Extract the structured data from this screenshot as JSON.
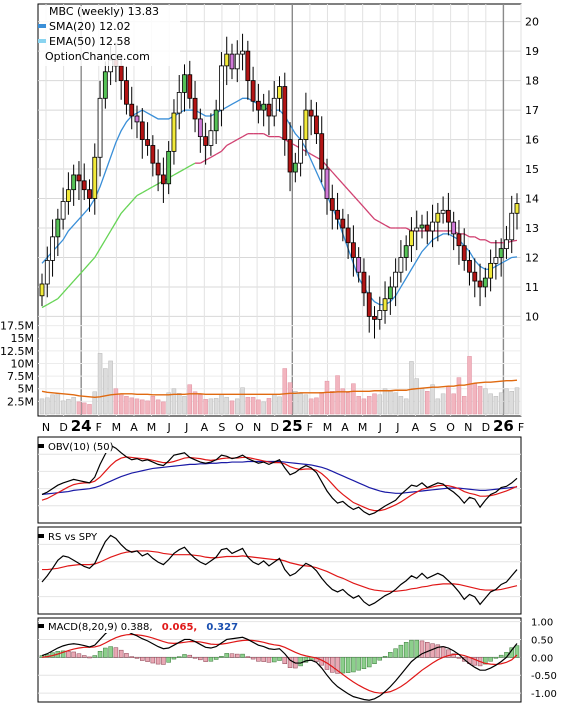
{
  "header": {
    "title": "MBC (weekly) 13.83",
    "sma_label": "SMA(20) 12.02",
    "ema_label": "EMA(50) 12.58",
    "watermark": "OptionChance.com"
  },
  "colors": {
    "sma": "#3a8fd8",
    "ema": "#8ad4f0",
    "up_body": "#f2ea3a",
    "up_body2": "#56c256",
    "down_body": "#b31515",
    "pink_body": "#d07ad8",
    "vol_up": "#dcdcdc",
    "vol_down": "#f2b5bf",
    "vol_ma": "#e06a10",
    "obv": "#000000",
    "obv_slow": "#1a1aa6",
    "signal": "#e01818",
    "macd_hist_up": "#8ccf8c",
    "macd_hist_down": "#e8a8b4",
    "macd_value2": "#e01818",
    "macd_value3": "#1a4fb0"
  },
  "chart_data": [
    {
      "type": "candlestick",
      "title": "MBC (weekly) 13.83",
      "series_names": [
        "SMA(20) 12.02",
        "EMA(50) 12.58"
      ],
      "ylim": [
        9.2,
        20.6
      ],
      "y_ticks": [
        "10",
        "11",
        "12",
        "13",
        "14",
        "15",
        "16",
        "17",
        "18",
        "19",
        "20"
      ],
      "x_ticks": [
        "N",
        "D",
        "24",
        "F",
        "M",
        "A",
        "M",
        "J",
        "J",
        "A",
        "S",
        "O",
        "N",
        "D",
        "25",
        "F",
        "M",
        "A",
        "M",
        "J",
        "J",
        "A",
        "S",
        "O",
        "N",
        "D",
        "26",
        "F"
      ],
      "grid": true,
      "close": [
        11.1,
        11.9,
        12.7,
        13.3,
        13.9,
        14.3,
        14.8,
        14.6,
        14.3,
        14.0,
        15.4,
        17.4,
        18.3,
        18.7,
        18.5,
        18.0,
        17.2,
        16.8,
        16.6,
        16.0,
        15.8,
        15.2,
        14.8,
        14.5,
        15.6,
        16.9,
        17.6,
        18.2,
        17.4,
        16.7,
        16.1,
        15.8,
        16.3,
        17.0,
        18.5,
        18.9,
        18.4,
        18.9,
        19.0,
        18.0,
        17.3,
        17.0,
        17.2,
        16.8,
        17.4,
        17.8,
        16.0,
        14.9,
        15.2,
        16.0,
        17.0,
        16.8,
        16.2,
        15.0,
        14.0,
        13.6,
        13.3,
        13.0,
        12.5,
        12.0,
        11.5,
        10.8,
        10.0,
        9.9,
        10.2,
        10.6,
        11.0,
        11.5,
        12.0,
        12.4,
        12.9,
        13.0,
        13.1,
        12.9,
        13.2,
        13.5,
        13.6,
        13.2,
        12.8,
        12.4,
        11.9,
        11.5,
        11.2,
        11.0,
        11.3,
        11.8,
        12.0,
        12.3,
        12.6,
        13.5,
        13.83
      ],
      "sma20": [
        11.8,
        12.0,
        12.2,
        12.4,
        12.6,
        12.9,
        13.1,
        13.3,
        13.5,
        13.7,
        14.0,
        14.4,
        14.9,
        15.4,
        15.9,
        16.3,
        16.6,
        16.8,
        16.9,
        17.0,
        16.9,
        16.8,
        16.7,
        16.7,
        16.7,
        16.8,
        16.9,
        17.0,
        17.0,
        17.0,
        16.9,
        16.8,
        16.8,
        16.9,
        17.0,
        17.1,
        17.2,
        17.3,
        17.4,
        17.4,
        17.3,
        17.2,
        17.1,
        17.0,
        17.0,
        17.0,
        16.8,
        16.5,
        16.2,
        16.0,
        15.7,
        15.3,
        14.9,
        14.5,
        14.1,
        13.7,
        13.3,
        12.8,
        12.3,
        11.8,
        11.3,
        11.0,
        10.7,
        10.5,
        10.4,
        10.4,
        10.5,
        10.7,
        11.0,
        11.3,
        11.6,
        11.9,
        12.2,
        12.4,
        12.6,
        12.7,
        12.8,
        12.8,
        12.7,
        12.6,
        12.4,
        12.2,
        11.9,
        11.7,
        11.6,
        11.6,
        11.7,
        11.8,
        11.9,
        12.0,
        12.02
      ],
      "ema50": [
        10.3,
        10.4,
        10.5,
        10.6,
        10.8,
        11.0,
        11.2,
        11.4,
        11.6,
        11.8,
        12.0,
        12.3,
        12.6,
        12.9,
        13.2,
        13.5,
        13.7,
        13.9,
        14.1,
        14.2,
        14.3,
        14.4,
        14.5,
        14.6,
        14.7,
        14.8,
        14.9,
        15.0,
        15.1,
        15.2,
        15.2,
        15.3,
        15.4,
        15.5,
        15.6,
        15.8,
        15.9,
        16.0,
        16.1,
        16.2,
        16.2,
        16.2,
        16.2,
        16.1,
        16.1,
        16.1,
        16.0,
        15.9,
        15.8,
        15.7,
        15.6,
        15.5,
        15.4,
        15.3,
        15.1,
        14.9,
        14.7,
        14.5,
        14.3,
        14.1,
        13.9,
        13.7,
        13.5,
        13.3,
        13.2,
        13.1,
        13.0,
        13.0,
        13.0,
        13.0,
        12.9,
        12.9,
        12.9,
        12.9,
        12.9,
        12.9,
        12.9,
        12.9,
        12.9,
        12.8,
        12.8,
        12.7,
        12.7,
        12.6,
        12.6,
        12.5,
        12.5,
        12.5,
        12.5,
        12.55,
        12.58
      ]
    },
    {
      "type": "bar",
      "name": "volume",
      "y_ticks": [
        "17.5M",
        "15M",
        "12.5M",
        "10M",
        "7.5M",
        "5M",
        "2.5M"
      ],
      "ylim": [
        0,
        19
      ],
      "values_m": [
        3.0,
        3.2,
        3.8,
        4.0,
        2.6,
        2.9,
        3.3,
        2.4,
        2.2,
        1.9,
        4.4,
        12.0,
        9.0,
        10.5,
        5.0,
        4.0,
        3.5,
        3.2,
        3.0,
        2.8,
        2.6,
        3.5,
        2.8,
        2.4,
        4.2,
        5.0,
        4.1,
        3.5,
        5.8,
        4.4,
        3.8,
        2.9,
        3.0,
        3.1,
        3.8,
        3.3,
        2.6,
        3.0,
        5.2,
        3.3,
        3.3,
        2.8,
        2.4,
        3.1,
        3.8,
        3.4,
        9.0,
        6.2,
        4.5,
        4.0,
        3.8,
        3.0,
        3.2,
        4.3,
        6.5,
        4.5,
        7.6,
        5.0,
        4.2,
        6.0,
        3.5,
        3.0,
        3.5,
        4.0,
        3.8,
        5.0,
        4.5,
        4.2,
        3.5,
        3.0,
        10.4,
        7.0,
        5.0,
        4.5,
        5.8,
        3.0,
        4.0,
        5.5,
        4.0,
        7.2,
        3.5,
        11.4,
        6.0,
        5.5,
        5.0,
        4.0,
        3.5,
        4.2,
        5.0,
        4.5,
        5.2
      ],
      "ma_m": [
        4.5,
        4.3,
        4.2,
        4.1,
        4.0,
        3.9,
        3.8,
        3.6,
        3.5,
        3.4,
        3.3,
        3.4,
        3.6,
        3.8,
        3.9,
        4.0,
        4.0,
        4.0,
        3.9,
        3.9,
        3.9,
        3.8,
        3.8,
        3.8,
        3.8,
        3.9,
        3.9,
        3.9,
        4.0,
        4.0,
        4.0,
        3.9,
        3.9,
        3.9,
        3.9,
        3.9,
        3.9,
        3.9,
        3.9,
        3.9,
        3.9,
        3.9,
        3.9,
        3.9,
        3.9,
        3.9,
        4.0,
        4.1,
        4.1,
        4.2,
        4.2,
        4.2,
        4.2,
        4.2,
        4.3,
        4.3,
        4.4,
        4.4,
        4.4,
        4.5,
        4.5,
        4.5,
        4.5,
        4.6,
        4.6,
        4.6,
        4.6,
        4.7,
        4.7,
        4.7,
        4.9,
        5.0,
        5.1,
        5.2,
        5.3,
        5.3,
        5.4,
        5.5,
        5.5,
        5.7,
        5.7,
        5.9,
        6.1,
        6.2,
        6.3,
        6.3,
        6.4,
        6.5,
        6.6,
        6.6,
        6.7
      ]
    },
    {
      "type": "line",
      "name": "OBV(10) (50)",
      "legend": "OBV(10) (50)",
      "obv": [
        0.1,
        0.14,
        0.2,
        0.26,
        0.3,
        0.33,
        0.36,
        0.34,
        0.32,
        0.3,
        0.4,
        0.62,
        0.8,
        0.95,
        0.9,
        0.82,
        0.75,
        0.7,
        0.72,
        0.68,
        0.7,
        0.66,
        0.62,
        0.6,
        0.68,
        0.78,
        0.8,
        0.82,
        0.74,
        0.7,
        0.66,
        0.64,
        0.66,
        0.7,
        0.78,
        0.76,
        0.72,
        0.74,
        0.78,
        0.72,
        0.68,
        0.64,
        0.66,
        0.62,
        0.66,
        0.7,
        0.56,
        0.44,
        0.48,
        0.55,
        0.6,
        0.56,
        0.48,
        0.32,
        0.16,
        0.04,
        -0.05,
        -0.02,
        -0.1,
        -0.16,
        -0.12,
        -0.2,
        -0.25,
        -0.22,
        -0.16,
        -0.1,
        -0.05,
        0.0,
        0.1,
        0.18,
        0.26,
        0.24,
        0.3,
        0.22,
        0.26,
        0.3,
        0.28,
        0.2,
        0.14,
        0.06,
        -0.05,
        0.05,
        0.02,
        -0.12,
        0.0,
        0.1,
        0.14,
        0.22,
        0.24,
        0.3,
        0.38
      ],
      "signal": [
        0.0,
        0.03,
        0.08,
        0.13,
        0.18,
        0.23,
        0.27,
        0.29,
        0.3,
        0.3,
        0.33,
        0.4,
        0.5,
        0.6,
        0.68,
        0.73,
        0.75,
        0.74,
        0.73,
        0.72,
        0.71,
        0.69,
        0.67,
        0.65,
        0.65,
        0.67,
        0.7,
        0.73,
        0.74,
        0.73,
        0.72,
        0.7,
        0.69,
        0.7,
        0.72,
        0.73,
        0.73,
        0.73,
        0.74,
        0.74,
        0.72,
        0.7,
        0.68,
        0.66,
        0.65,
        0.65,
        0.63,
        0.58,
        0.55,
        0.53,
        0.54,
        0.54,
        0.52,
        0.46,
        0.38,
        0.28,
        0.18,
        0.1,
        0.03,
        -0.04,
        -0.08,
        -0.12,
        -0.16,
        -0.18,
        -0.18,
        -0.16,
        -0.12,
        -0.08,
        -0.03,
        0.03,
        0.09,
        0.14,
        0.19,
        0.21,
        0.23,
        0.25,
        0.26,
        0.25,
        0.23,
        0.2,
        0.15,
        0.12,
        0.1,
        0.07,
        0.07,
        0.08,
        0.1,
        0.13,
        0.16,
        0.2,
        0.24
      ],
      "slow": [
        0.1,
        0.11,
        0.12,
        0.13,
        0.14,
        0.15,
        0.17,
        0.18,
        0.19,
        0.2,
        0.22,
        0.25,
        0.29,
        0.33,
        0.37,
        0.41,
        0.44,
        0.47,
        0.49,
        0.51,
        0.53,
        0.55,
        0.56,
        0.57,
        0.58,
        0.59,
        0.6,
        0.61,
        0.62,
        0.62,
        0.63,
        0.63,
        0.64,
        0.64,
        0.65,
        0.65,
        0.66,
        0.66,
        0.66,
        0.67,
        0.67,
        0.67,
        0.67,
        0.67,
        0.67,
        0.67,
        0.66,
        0.65,
        0.64,
        0.63,
        0.62,
        0.61,
        0.59,
        0.57,
        0.54,
        0.5,
        0.46,
        0.42,
        0.38,
        0.34,
        0.3,
        0.26,
        0.22,
        0.19,
        0.16,
        0.14,
        0.13,
        0.12,
        0.12,
        0.13,
        0.14,
        0.15,
        0.16,
        0.17,
        0.18,
        0.19,
        0.2,
        0.21,
        0.21,
        0.21,
        0.2,
        0.19,
        0.18,
        0.17,
        0.17,
        0.18,
        0.19,
        0.2,
        0.21,
        0.22,
        0.23
      ]
    },
    {
      "type": "line",
      "name": "RS vs SPY",
      "legend": "RS vs SPY",
      "rs": [
        0.2,
        0.3,
        0.42,
        0.55,
        0.62,
        0.6,
        0.55,
        0.5,
        0.45,
        0.42,
        0.5,
        0.68,
        0.85,
        0.95,
        0.9,
        0.8,
        0.72,
        0.68,
        0.7,
        0.62,
        0.66,
        0.58,
        0.52,
        0.48,
        0.56,
        0.66,
        0.72,
        0.76,
        0.66,
        0.58,
        0.52,
        0.48,
        0.54,
        0.6,
        0.72,
        0.74,
        0.66,
        0.7,
        0.74,
        0.6,
        0.52,
        0.48,
        0.54,
        0.46,
        0.52,
        0.58,
        0.4,
        0.3,
        0.34,
        0.42,
        0.5,
        0.46,
        0.38,
        0.26,
        0.16,
        0.08,
        0.04,
        0.08,
        0.0,
        -0.06,
        -0.02,
        -0.12,
        -0.18,
        -0.14,
        -0.08,
        -0.02,
        0.02,
        0.08,
        0.16,
        0.22,
        0.3,
        0.26,
        0.34,
        0.26,
        0.3,
        0.34,
        0.3,
        0.22,
        0.14,
        0.04,
        -0.08,
        0.0,
        -0.04,
        -0.16,
        -0.06,
        0.04,
        0.08,
        0.16,
        0.2,
        0.3,
        0.4
      ],
      "ma": [
        0.4,
        0.4,
        0.41,
        0.42,
        0.44,
        0.46,
        0.47,
        0.48,
        0.48,
        0.48,
        0.49,
        0.52,
        0.56,
        0.6,
        0.63,
        0.66,
        0.68,
        0.69,
        0.7,
        0.7,
        0.7,
        0.69,
        0.68,
        0.66,
        0.65,
        0.64,
        0.64,
        0.64,
        0.64,
        0.63,
        0.62,
        0.6,
        0.59,
        0.59,
        0.6,
        0.61,
        0.61,
        0.61,
        0.62,
        0.61,
        0.6,
        0.59,
        0.58,
        0.57,
        0.56,
        0.56,
        0.54,
        0.51,
        0.49,
        0.47,
        0.46,
        0.45,
        0.43,
        0.4,
        0.37,
        0.33,
        0.29,
        0.26,
        0.22,
        0.18,
        0.15,
        0.12,
        0.09,
        0.07,
        0.06,
        0.05,
        0.05,
        0.05,
        0.06,
        0.07,
        0.09,
        0.1,
        0.12,
        0.13,
        0.15,
        0.16,
        0.17,
        0.17,
        0.17,
        0.16,
        0.14,
        0.12,
        0.1,
        0.08,
        0.07,
        0.07,
        0.07,
        0.08,
        0.1,
        0.12,
        0.14
      ]
    },
    {
      "type": "bar_line",
      "name": "MACD",
      "legend_prefix": "MACD(8,20,9) 0.388,",
      "legend_value2": "0.065,",
      "legend_value3": "0.327",
      "ylim": [
        -1.25,
        1.1
      ],
      "y_ticks": [
        "1.00",
        "0.50",
        "0.00",
        "-0.50",
        "-1.00"
      ],
      "y_tick_values": [
        1.0,
        0.5,
        0.0,
        -0.5,
        -1.0
      ],
      "macd": [
        0.05,
        0.1,
        0.18,
        0.26,
        0.32,
        0.36,
        0.38,
        0.36,
        0.33,
        0.29,
        0.34,
        0.5,
        0.66,
        0.78,
        0.82,
        0.8,
        0.74,
        0.66,
        0.6,
        0.52,
        0.46,
        0.38,
        0.3,
        0.24,
        0.26,
        0.34,
        0.42,
        0.5,
        0.5,
        0.44,
        0.36,
        0.28,
        0.26,
        0.3,
        0.4,
        0.5,
        0.52,
        0.54,
        0.56,
        0.5,
        0.42,
        0.34,
        0.3,
        0.24,
        0.22,
        0.24,
        0.1,
        -0.08,
        -0.16,
        -0.16,
        -0.1,
        -0.08,
        -0.14,
        -0.3,
        -0.5,
        -0.68,
        -0.82,
        -0.92,
        -1.02,
        -1.1,
        -1.14,
        -1.18,
        -1.2,
        -1.16,
        -1.08,
        -0.96,
        -0.82,
        -0.66,
        -0.48,
        -0.3,
        -0.12,
        0.0,
        0.1,
        0.16,
        0.22,
        0.28,
        0.3,
        0.26,
        0.18,
        0.08,
        -0.06,
        -0.18,
        -0.28,
        -0.36,
        -0.36,
        -0.3,
        -0.22,
        -0.12,
        0.0,
        0.2,
        0.388
      ],
      "signal": [
        0.0,
        0.02,
        0.05,
        0.09,
        0.14,
        0.19,
        0.23,
        0.26,
        0.28,
        0.28,
        0.29,
        0.33,
        0.4,
        0.48,
        0.55,
        0.6,
        0.63,
        0.64,
        0.63,
        0.61,
        0.58,
        0.54,
        0.49,
        0.44,
        0.4,
        0.39,
        0.4,
        0.42,
        0.44,
        0.44,
        0.43,
        0.4,
        0.37,
        0.36,
        0.37,
        0.39,
        0.42,
        0.45,
        0.47,
        0.48,
        0.47,
        0.45,
        0.42,
        0.38,
        0.35,
        0.33,
        0.28,
        0.21,
        0.14,
        0.08,
        0.04,
        0.01,
        -0.02,
        -0.08,
        -0.16,
        -0.26,
        -0.37,
        -0.48,
        -0.59,
        -0.69,
        -0.78,
        -0.86,
        -0.93,
        -0.98,
        -1.0,
        -0.99,
        -0.96,
        -0.9,
        -0.82,
        -0.72,
        -0.6,
        -0.48,
        -0.36,
        -0.26,
        -0.16,
        -0.07,
        0.0,
        0.05,
        0.08,
        0.08,
        0.05,
        0.0,
        -0.06,
        -0.12,
        -0.17,
        -0.19,
        -0.2,
        -0.18,
        -0.14,
        -0.07,
        0.065
      ],
      "histogram": [
        0.05,
        0.08,
        0.13,
        0.17,
        0.18,
        0.17,
        0.15,
        0.1,
        0.05,
        0.01,
        0.05,
        0.17,
        0.26,
        0.3,
        0.27,
        0.2,
        0.11,
        0.02,
        -0.03,
        -0.09,
        -0.12,
        -0.16,
        -0.19,
        -0.2,
        -0.14,
        -0.05,
        0.02,
        0.08,
        0.06,
        0.0,
        -0.07,
        -0.12,
        -0.11,
        -0.06,
        0.03,
        0.11,
        0.1,
        0.09,
        0.09,
        0.02,
        -0.05,
        -0.11,
        -0.12,
        -0.14,
        -0.13,
        -0.09,
        -0.18,
        -0.29,
        -0.3,
        -0.24,
        -0.14,
        -0.09,
        -0.12,
        -0.22,
        -0.34,
        -0.42,
        -0.45,
        -0.44,
        -0.43,
        -0.41,
        -0.36,
        -0.32,
        -0.27,
        -0.18,
        -0.08,
        0.03,
        0.14,
        0.24,
        0.34,
        0.42,
        0.48,
        0.48,
        0.46,
        0.42,
        0.38,
        0.35,
        0.3,
        0.21,
        0.1,
        0.0,
        -0.11,
        -0.18,
        -0.22,
        -0.24,
        -0.19,
        -0.11,
        -0.02,
        0.06,
        0.14,
        0.27,
        0.327
      ]
    }
  ]
}
